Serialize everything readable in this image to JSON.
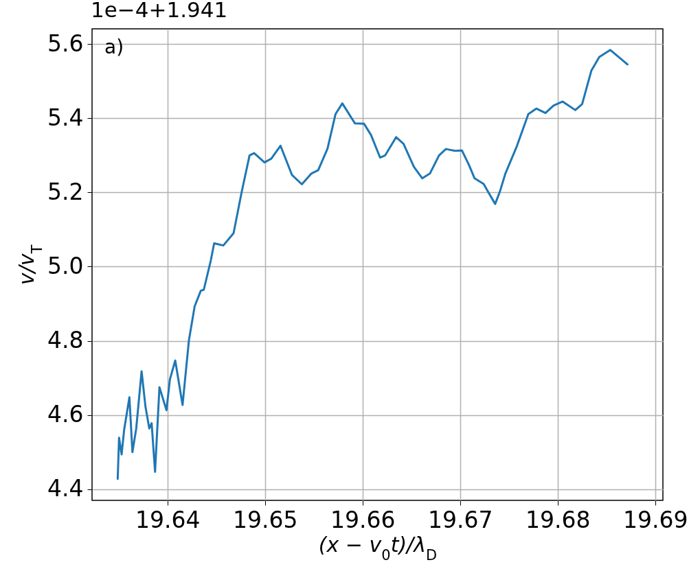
{
  "chart_data": {
    "type": "line",
    "xlabel": "(x − v$_{0}$t)/λ$_{D}$",
    "ylabel": "v/v$_{T}$",
    "annotations": [
      "1e−4+1.941",
      "a)"
    ],
    "xlim": [
      19.63227,
      19.6908
    ],
    "ylim": [
      4.37,
      5.641
    ],
    "xticks": [
      19.64,
      19.65,
      19.66,
      19.67,
      19.68,
      19.69
    ],
    "yticks": [
      4.4,
      4.6,
      4.8,
      {
        "value": 5,
        "label": "5.0"
      },
      5.2,
      5.4,
      5.6
    ],
    "grid": true,
    "series": [
      {
        "color": "#1f77b4",
        "x": [
          19.6349,
          19.63504,
          19.6353,
          19.63556,
          19.6361,
          19.63641,
          19.6368,
          19.63735,
          19.63775,
          19.63814,
          19.63838,
          19.63873,
          19.63918,
          19.6399,
          19.64025,
          19.6408,
          19.64155,
          19.6422,
          19.64279,
          19.64342,
          19.64373,
          19.64444,
          19.64479,
          19.64573,
          19.64678,
          19.64761,
          19.64842,
          19.64889,
          19.64995,
          19.65065,
          19.65159,
          19.65277,
          19.65378,
          19.65476,
          19.65546,
          19.65641,
          19.65723,
          19.65793,
          19.65923,
          19.66016,
          19.66087,
          19.6618,
          19.66233,
          19.66345,
          19.66421,
          19.66527,
          19.66613,
          19.66691,
          19.66785,
          19.66855,
          19.66949,
          19.6702,
          19.6709,
          19.67149,
          19.67242,
          19.67289,
          19.6736,
          19.67407,
          19.67465,
          19.67583,
          19.677,
          19.67782,
          19.67876,
          19.67958,
          19.68052,
          19.68182,
          19.68252,
          19.68346,
          19.68428,
          19.68541,
          19.68627,
          19.68717
        ],
        "values": [
          4.428,
          4.539,
          4.494,
          4.56,
          4.648,
          4.5,
          4.564,
          4.718,
          4.622,
          4.564,
          4.578,
          4.447,
          4.675,
          4.613,
          4.696,
          4.747,
          4.627,
          4.801,
          4.893,
          4.935,
          4.938,
          5.016,
          5.063,
          5.057,
          5.09,
          5.201,
          5.3,
          5.306,
          5.281,
          5.291,
          5.326,
          5.247,
          5.222,
          5.251,
          5.26,
          5.318,
          5.411,
          5.44,
          5.386,
          5.385,
          5.355,
          5.294,
          5.3,
          5.349,
          5.331,
          5.269,
          5.238,
          5.251,
          5.3,
          5.317,
          5.312,
          5.313,
          5.275,
          5.238,
          5.223,
          5.201,
          5.169,
          5.201,
          5.251,
          5.325,
          5.411,
          5.426,
          5.414,
          5.434,
          5.445,
          5.422,
          5.438,
          5.528,
          5.565,
          5.584,
          5.565,
          5.545
        ]
      }
    ]
  }
}
